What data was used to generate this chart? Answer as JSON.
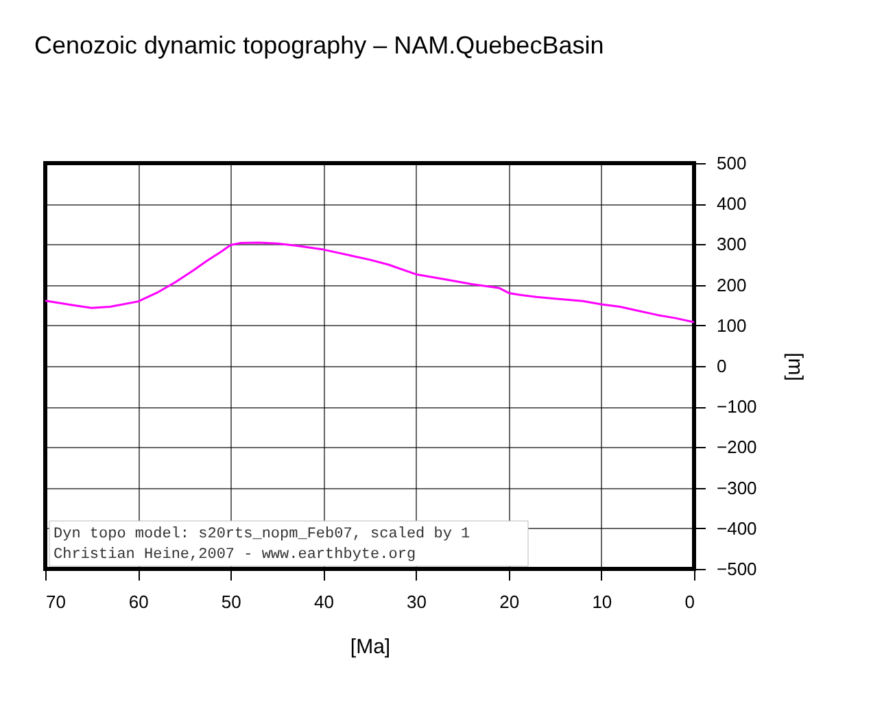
{
  "chart_data": {
    "type": "line",
    "title": "Cenozoic dynamic topography – NAM.QuebecBasin",
    "xlabel": "[Ma]",
    "ylabel": "[m]",
    "x": [
      70,
      67,
      65,
      63,
      60,
      58,
      56,
      54,
      52.5,
      51,
      50,
      49,
      47,
      45,
      43,
      40,
      37,
      35,
      33,
      30,
      27,
      24,
      21,
      20,
      19,
      17,
      15,
      12,
      10,
      8,
      6,
      4,
      2,
      0
    ],
    "series": [
      {
        "color": "#ff00ff",
        "values": [
          161,
          150,
          143,
          146,
          159,
          180,
          206,
          236,
          260,
          282,
          298,
          303,
          304,
          302,
          297,
          287,
          272,
          262,
          250,
          226,
          214,
          202,
          192,
          180,
          176,
          170,
          166,
          160,
          152,
          146,
          136,
          126,
          118,
          108
        ]
      }
    ],
    "xlim": [
      70,
      0
    ],
    "ylim": [
      -500,
      500
    ],
    "xticks": [
      70,
      60,
      50,
      40,
      30,
      20,
      10,
      0
    ],
    "yticks": [
      -500,
      -400,
      -300,
      -200,
      -100,
      0,
      100,
      200,
      300,
      400,
      500
    ],
    "grid": true,
    "annotations": [
      "Dyn topo model: s20rts_nopm_Feb07, scaled by 1",
      "Christian Heine,2007 - www.earthbyte.org"
    ]
  }
}
